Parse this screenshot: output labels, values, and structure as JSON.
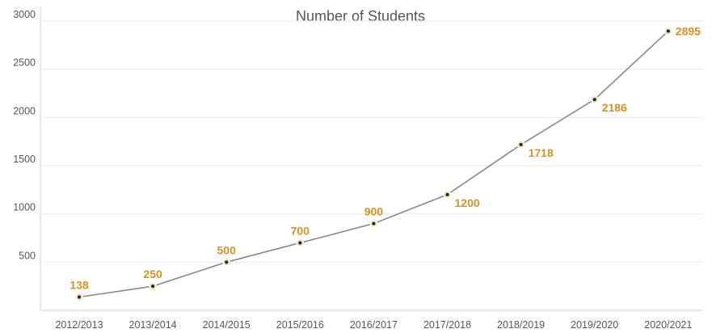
{
  "chart_data": {
    "type": "line",
    "title": "Number of Students",
    "xlabel": "",
    "ylabel": "",
    "categories": [
      "2012/2013",
      "2013/2014",
      "2014/2015",
      "2015/2016",
      "2016/2017",
      "2017/2018",
      "2018/2019",
      "2019/2020",
      "2020/2021"
    ],
    "values": [
      138,
      250,
      500,
      700,
      900,
      1200,
      1718,
      2186,
      2895
    ],
    "data_labels": [
      "138",
      "250",
      "500",
      "700",
      "900",
      "1200",
      "1718",
      "2186",
      "2895"
    ],
    "y_ticks": [
      500,
      1000,
      1500,
      2000,
      2500,
      3000
    ],
    "y_tick_labels": [
      "500",
      "1000",
      "1500",
      "2000",
      "2500",
      "3000"
    ],
    "ylim": [
      0,
      3150
    ],
    "grid": true,
    "legend": "none",
    "colors": {
      "line": "#8a8a8a",
      "marker": "#f3dfb9",
      "marker_center": "#222222",
      "data_label": "#d8921c",
      "text": "#555555"
    }
  }
}
